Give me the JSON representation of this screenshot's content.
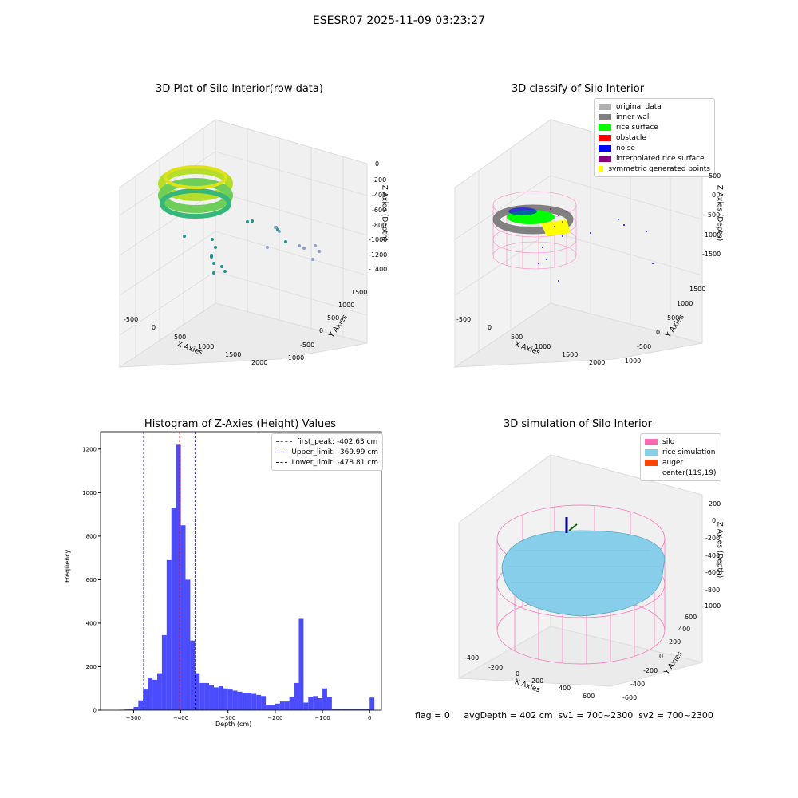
{
  "figure": {
    "suptitle": "ESESR07 2025-11-09 03:23:27",
    "footer": "flag = 0     avgDepth = 402 cm  sv1 = 700~2300  sv2 = 700~2300"
  },
  "panel1": {
    "title": "3D Plot of Silo Interior(row data)",
    "xlabel": "X Axies",
    "ylabel": "Y Axies",
    "zlabel": "Z Axies (Depth)",
    "xticks": [
      "-500",
      "0",
      "500",
      "1000",
      "1500",
      "2000"
    ],
    "yticks": [
      "-1000",
      "-500",
      "0",
      "500",
      "1000",
      "1500"
    ],
    "zticks": [
      "0",
      "-200",
      "-400",
      "-600",
      "-800",
      "-1000",
      "-1200",
      "-1400"
    ]
  },
  "panel2": {
    "title": "3D classify of Silo Interior",
    "xlabel": "X Axies",
    "ylabel": "Y Axies",
    "zlabel": "Z Axies (Depth)",
    "xticks": [
      "-500",
      "0",
      "500",
      "1000",
      "1500",
      "2000"
    ],
    "yticks": [
      "-1000",
      "-500",
      "0",
      "500",
      "1000",
      "1500"
    ],
    "zticks": [
      "500",
      "0",
      "-500",
      "-1000",
      "-1500"
    ],
    "legend": [
      {
        "label": "original data",
        "color": "#b0b0b0"
      },
      {
        "label": "inner wall",
        "color": "#808080"
      },
      {
        "label": "rice surface",
        "color": "#00ff00"
      },
      {
        "label": "obstacle",
        "color": "#ff0000"
      },
      {
        "label": "noise",
        "color": "#0000ff"
      },
      {
        "label": "interpolated rice surface",
        "color": "#800080"
      },
      {
        "label": "symmetric generated points",
        "color": "#ffff00"
      }
    ]
  },
  "panel4": {
    "title": "3D simulation of Silo Interior",
    "xlabel": "X Axies",
    "ylabel": "Y Axies",
    "zlabel": "Z Axies (Depth)",
    "xticks": [
      "-400",
      "-200",
      "0",
      "200",
      "400",
      "600"
    ],
    "yticks": [
      "-600",
      "-400",
      "-200",
      "0",
      "200",
      "400",
      "600"
    ],
    "zticks": [
      "200",
      "0",
      "-200",
      "-400",
      "-600",
      "-800",
      "-1000"
    ],
    "legend": [
      {
        "label": "silo",
        "color": "#ff69b4"
      },
      {
        "label": "rice simulation",
        "color": "#87ceeb"
      },
      {
        "label": "auger",
        "color": "#ff4500"
      },
      {
        "label": "center(119,19)",
        "color": "#ffffff"
      }
    ]
  },
  "chart_data": {
    "type": "bar",
    "title": "Histogram of Z-Axies (Height) Values",
    "xlabel": "Depth (cm)",
    "ylabel": "Frequency",
    "xlim": [
      -570,
      25
    ],
    "ylim": [
      0,
      1280
    ],
    "xticks": [
      -500,
      -400,
      -300,
      -200,
      -100,
      0
    ],
    "yticks": [
      0,
      200,
      400,
      600,
      800,
      1000,
      1200
    ],
    "bin_width": 10,
    "bins": [
      [
        -530,
        2
      ],
      [
        -520,
        3
      ],
      [
        -510,
        5
      ],
      [
        -500,
        15
      ],
      [
        -490,
        45
      ],
      [
        -480,
        95
      ],
      [
        -470,
        150
      ],
      [
        -460,
        140
      ],
      [
        -450,
        170
      ],
      [
        -440,
        345
      ],
      [
        -430,
        690
      ],
      [
        -420,
        930
      ],
      [
        -410,
        1220
      ],
      [
        -400,
        850
      ],
      [
        -390,
        600
      ],
      [
        -380,
        320
      ],
      [
        -370,
        170
      ],
      [
        -360,
        125
      ],
      [
        -350,
        125
      ],
      [
        -340,
        115
      ],
      [
        -330,
        105
      ],
      [
        -320,
        110
      ],
      [
        -310,
        100
      ],
      [
        -300,
        95
      ],
      [
        -290,
        90
      ],
      [
        -280,
        85
      ],
      [
        -270,
        80
      ],
      [
        -260,
        80
      ],
      [
        -250,
        75
      ],
      [
        -240,
        70
      ],
      [
        -230,
        65
      ],
      [
        -220,
        25
      ],
      [
        -210,
        25
      ],
      [
        -200,
        30
      ],
      [
        -190,
        40
      ],
      [
        -180,
        40
      ],
      [
        -170,
        60
      ],
      [
        -160,
        125
      ],
      [
        -150,
        420
      ],
      [
        -140,
        35
      ],
      [
        -130,
        60
      ],
      [
        -120,
        65
      ],
      [
        -110,
        55
      ],
      [
        -100,
        100
      ],
      [
        -90,
        60
      ],
      [
        -80,
        5
      ],
      [
        -70,
        5
      ],
      [
        -60,
        5
      ],
      [
        -50,
        5
      ],
      [
        -40,
        5
      ],
      [
        -30,
        5
      ],
      [
        -20,
        5
      ],
      [
        -10,
        5
      ],
      [
        0,
        58
      ]
    ],
    "bar_color": "#0000ff",
    "lines": [
      {
        "name": "first_peak: -402.63 cm",
        "x": -402.63,
        "color": "#ff0000"
      },
      {
        "name": "Upper_limit: -369.99 cm",
        "x": -369.99,
        "color": "#00008b"
      },
      {
        "name": "Lower_limit: -478.81 cm",
        "x": -478.81,
        "color": "#0000cd"
      }
    ],
    "legend_position": "top-right"
  }
}
